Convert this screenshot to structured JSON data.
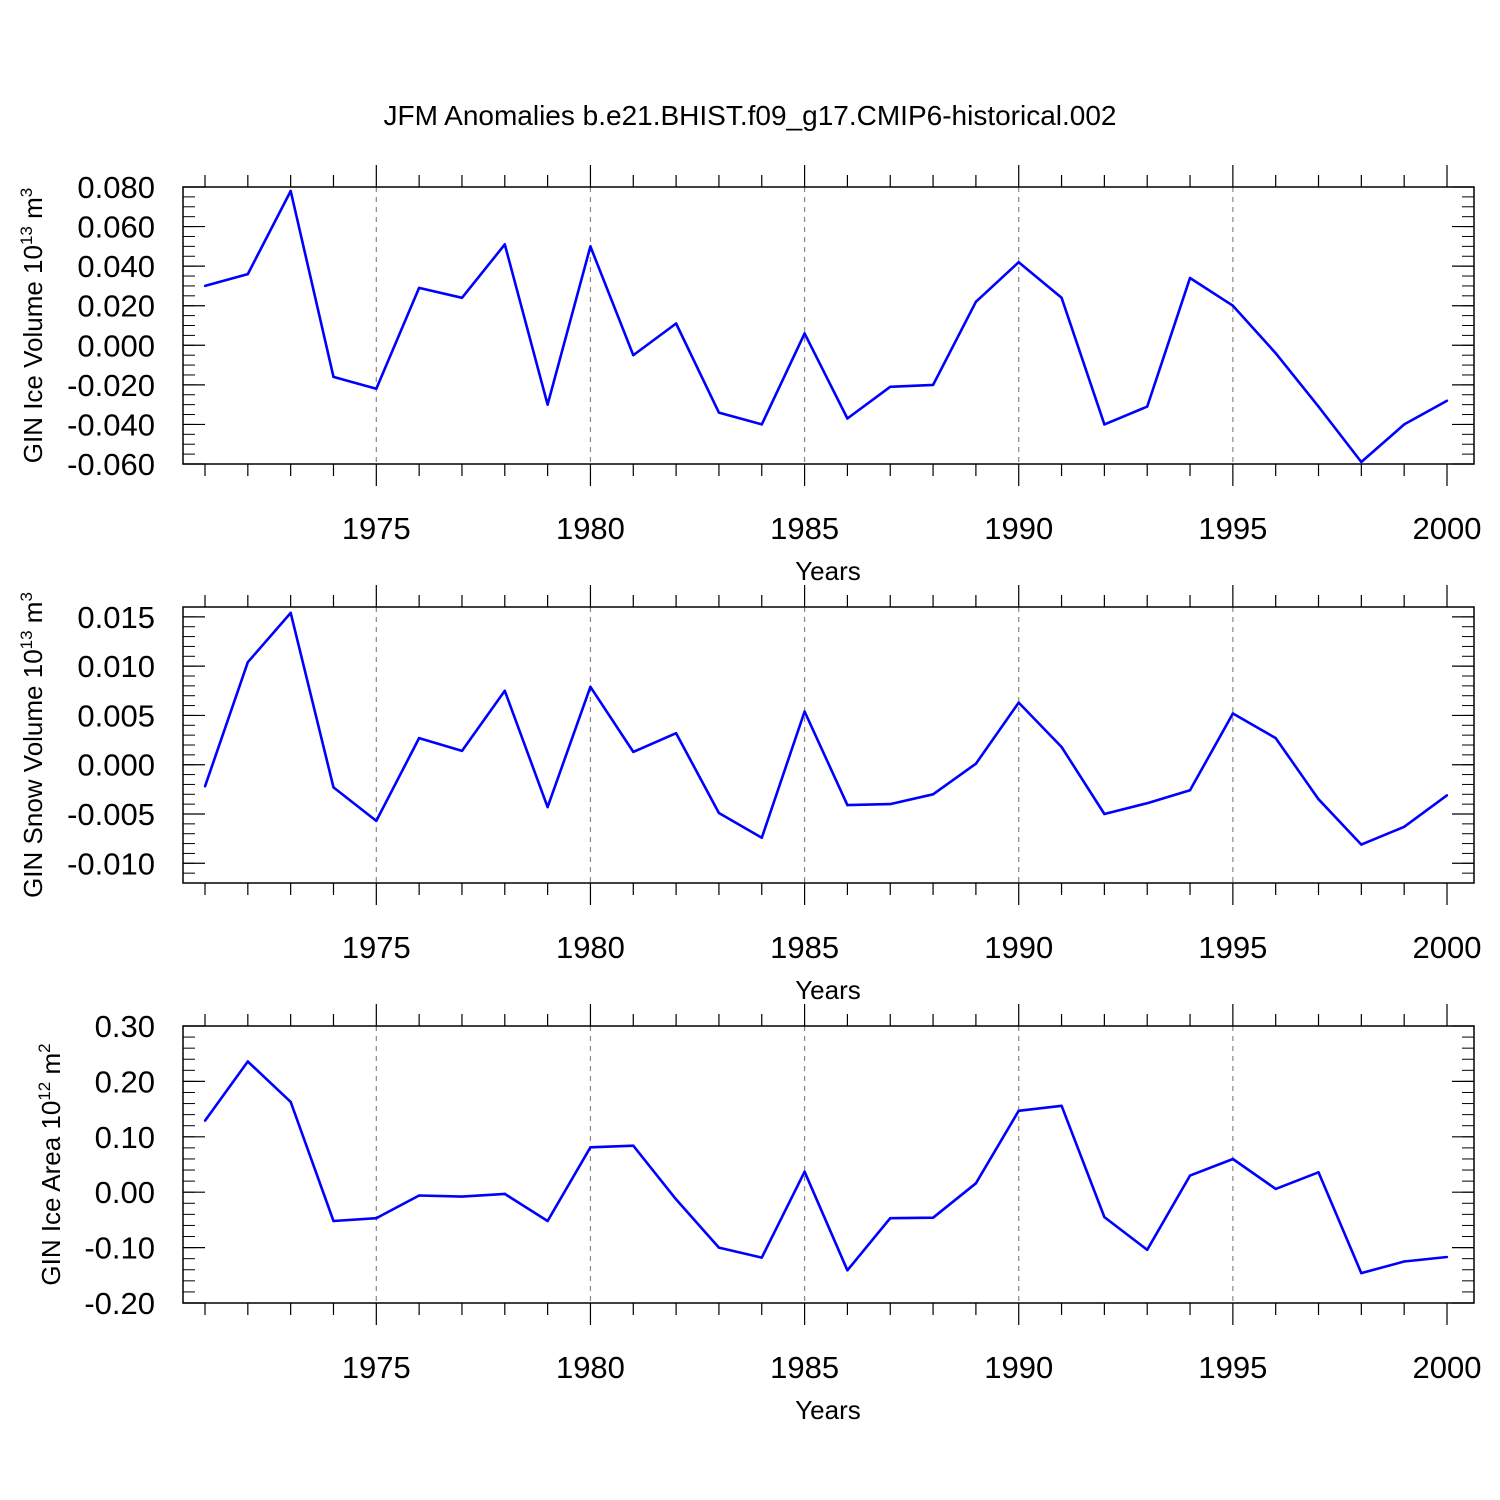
{
  "figure": {
    "title": "JFM Anomalies b.e21.BHIST.f09_g17.CMIP6-historical.002",
    "line_color": "#0000ff",
    "grid_color": "#888888"
  },
  "chart_data": [
    {
      "type": "line",
      "ylabel": "GIN Ice Volume 10",
      "ylabel_exp": "13",
      "ylabel_unit": " m",
      "ylabel_unit_exp": "3",
      "xlabel": "Years",
      "xlim": [
        1971,
        2000
      ],
      "ylim": [
        -0.06,
        0.08
      ],
      "grid": "dashed vertical at major x ticks",
      "x_ticks": [
        1975,
        1980,
        1985,
        1990,
        1995,
        2000
      ],
      "x_tick_labels": [
        "1975",
        "1980",
        "1985",
        "1990",
        "1995",
        "2000"
      ],
      "y_ticks": [
        -0.06,
        -0.04,
        -0.02,
        0.0,
        0.02,
        0.04,
        0.06,
        0.08
      ],
      "y_tick_labels": [
        "-0.060",
        "-0.040",
        "-0.020",
        "0.000",
        "0.020",
        "0.040",
        "0.060",
        "0.080"
      ],
      "y_minor_step": 0.005,
      "x": [
        1971,
        1972,
        1973,
        1974,
        1975,
        1976,
        1977,
        1978,
        1979,
        1980,
        1981,
        1982,
        1983,
        1984,
        1985,
        1986,
        1987,
        1988,
        1989,
        1990,
        1991,
        1992,
        1993,
        1994,
        1995,
        1996,
        1997,
        1998,
        1999,
        2000
      ],
      "values": [
        0.03,
        0.036,
        0.078,
        -0.016,
        -0.022,
        0.029,
        0.024,
        0.051,
        -0.03,
        0.05,
        -0.005,
        0.011,
        -0.034,
        -0.04,
        0.006,
        -0.037,
        -0.021,
        -0.02,
        0.022,
        0.042,
        0.024,
        -0.04,
        -0.031,
        0.034,
        0.02,
        -0.004,
        -0.031,
        -0.059,
        -0.04,
        -0.028
      ]
    },
    {
      "type": "line",
      "ylabel": "GIN Snow Volume 10",
      "ylabel_exp": "13",
      "ylabel_unit": " m",
      "ylabel_unit_exp": "3",
      "xlabel": "Years",
      "xlim": [
        1971,
        2000
      ],
      "ylim": [
        -0.012,
        0.016
      ],
      "grid": "dashed vertical at major x ticks",
      "x_ticks": [
        1975,
        1980,
        1985,
        1990,
        1995,
        2000
      ],
      "x_tick_labels": [
        "1975",
        "1980",
        "1985",
        "1990",
        "1995",
        "2000"
      ],
      "y_ticks": [
        -0.01,
        -0.005,
        0.0,
        0.005,
        0.01,
        0.015
      ],
      "y_tick_labels": [
        "-0.010",
        "-0.005",
        "0.000",
        "0.005",
        "0.010",
        "0.015"
      ],
      "y_minor_step": 0.001,
      "x": [
        1971,
        1972,
        1973,
        1974,
        1975,
        1976,
        1977,
        1978,
        1979,
        1980,
        1981,
        1982,
        1983,
        1984,
        1985,
        1986,
        1987,
        1988,
        1989,
        1990,
        1991,
        1992,
        1993,
        1994,
        1995,
        1996,
        1997,
        1998,
        1999,
        2000
      ],
      "values": [
        -0.0022,
        0.0104,
        0.0154,
        -0.0023,
        -0.0057,
        0.0027,
        0.0014,
        0.0075,
        -0.0043,
        0.0079,
        0.0013,
        0.0032,
        -0.0049,
        -0.0074,
        0.0054,
        -0.0041,
        -0.004,
        -0.003,
        0.0001,
        0.0063,
        0.0018,
        -0.005,
        -0.0039,
        -0.0026,
        0.0052,
        0.0027,
        -0.0035,
        -0.0081,
        -0.0063,
        -0.0031
      ]
    },
    {
      "type": "line",
      "ylabel": "GIN Ice Area 10",
      "ylabel_exp": "12",
      "ylabel_unit": " m",
      "ylabel_unit_exp": "2",
      "xlabel": "Years",
      "xlim": [
        1971,
        2000
      ],
      "ylim": [
        -0.2,
        0.3
      ],
      "grid": "dashed vertical at major x ticks",
      "x_ticks": [
        1975,
        1980,
        1985,
        1990,
        1995,
        2000
      ],
      "x_tick_labels": [
        "1975",
        "1980",
        "1985",
        "1990",
        "1995",
        "2000"
      ],
      "y_ticks": [
        -0.2,
        -0.1,
        0.0,
        0.1,
        0.2,
        0.3
      ],
      "y_tick_labels": [
        "-0.20",
        "-0.10",
        "0.00",
        "0.10",
        "0.20",
        "0.30"
      ],
      "y_minor_step": 0.02,
      "x": [
        1971,
        1972,
        1973,
        1974,
        1975,
        1976,
        1977,
        1978,
        1979,
        1980,
        1981,
        1982,
        1983,
        1984,
        1985,
        1986,
        1987,
        1988,
        1989,
        1990,
        1991,
        1992,
        1993,
        1994,
        1995,
        1996,
        1997,
        1998,
        1999,
        2000
      ],
      "values": [
        0.129,
        0.236,
        0.163,
        -0.052,
        -0.047,
        -0.006,
        -0.008,
        -0.003,
        -0.052,
        0.081,
        0.084,
        -0.013,
        -0.1,
        -0.118,
        0.037,
        -0.141,
        -0.047,
        -0.046,
        0.016,
        0.147,
        0.156,
        -0.045,
        -0.104,
        0.03,
        0.06,
        0.006,
        0.036,
        -0.146,
        -0.125,
        -0.117
      ]
    }
  ]
}
